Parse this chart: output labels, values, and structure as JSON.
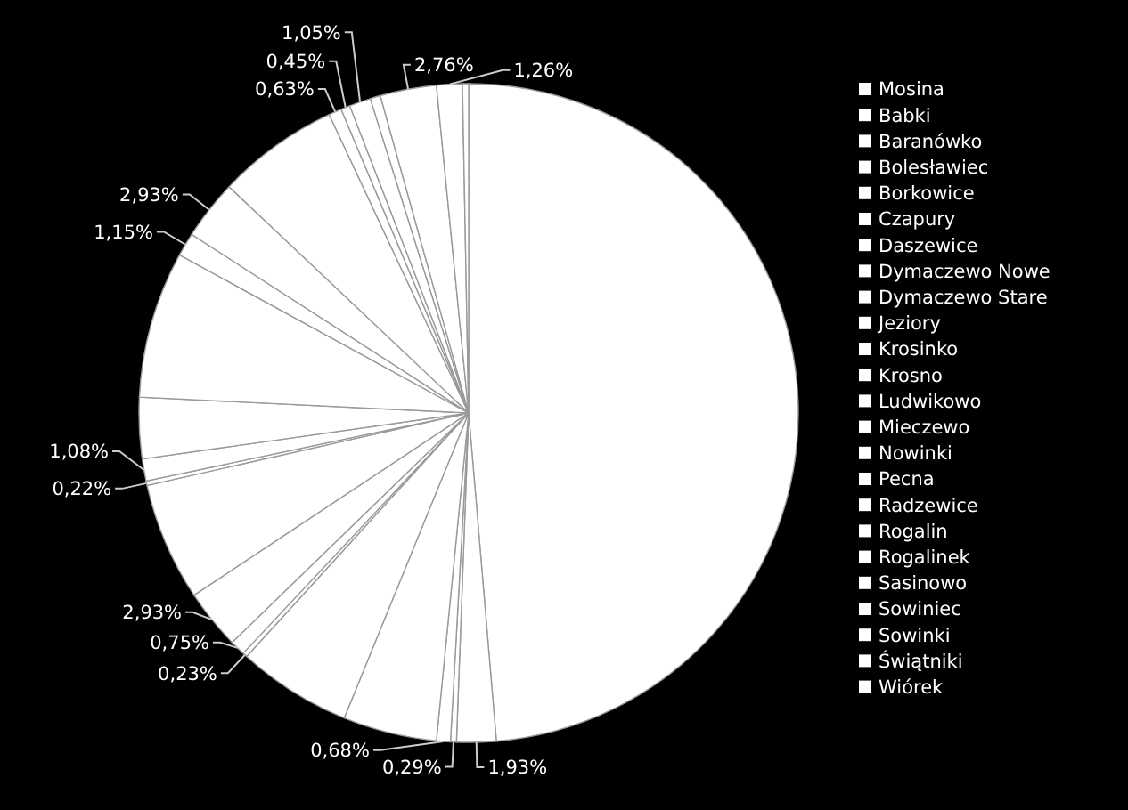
{
  "chart_data": {
    "type": "pie",
    "legend": "right",
    "categories": [
      "Mosina",
      "Babki",
      "Baranówko",
      "Bolesławiec",
      "Borkowice",
      "Czapury",
      "Daszewice",
      "Dymaczewo Nowe",
      "Dymaczewo Stare",
      "Jeziory",
      "Krosinko",
      "Krosno",
      "Ludwikowo",
      "Mieczewo",
      "Nowinki",
      "Pecna",
      "Radzewice",
      "Rogalin",
      "Rogalinek",
      "Sasinowo",
      "Sowiniec",
      "Sowinki",
      "Świątniki",
      "Wiórek"
    ],
    "values": [
      48.66,
      1.93,
      0.29,
      0.68,
      4.6,
      5.6,
      0.23,
      0.75,
      2.93,
      5.8,
      0.22,
      1.08,
      3.0,
      7.2,
      1.15,
      2.93,
      6.0,
      0.63,
      0.45,
      1.05,
      0.5,
      2.76,
      1.26,
      0.3
    ],
    "value_labels": [
      null,
      "1,93%",
      "0,29%",
      "0,68%",
      null,
      null,
      "0,23%",
      "0,75%",
      "2,93%",
      null,
      "0,22%",
      "1,08%",
      null,
      null,
      "1,15%",
      "2,93%",
      null,
      "0,63%",
      "0,45%",
      "1,05%",
      null,
      "2,76%",
      "1,26%",
      null
    ],
    "colors": [
      "#ffffff",
      "#ffffff",
      "#ffffff",
      "#ffffff",
      "#ffffff",
      "#ffffff",
      "#ffffff",
      "#ffffff",
      "#ffffff",
      "#ffffff",
      "#ffffff",
      "#ffffff",
      "#ffffff",
      "#ffffff",
      "#ffffff",
      "#ffffff",
      "#ffffff",
      "#ffffff",
      "#ffffff",
      "#ffffff",
      "#ffffff",
      "#ffffff",
      "#ffffff",
      "#ffffff"
    ]
  }
}
